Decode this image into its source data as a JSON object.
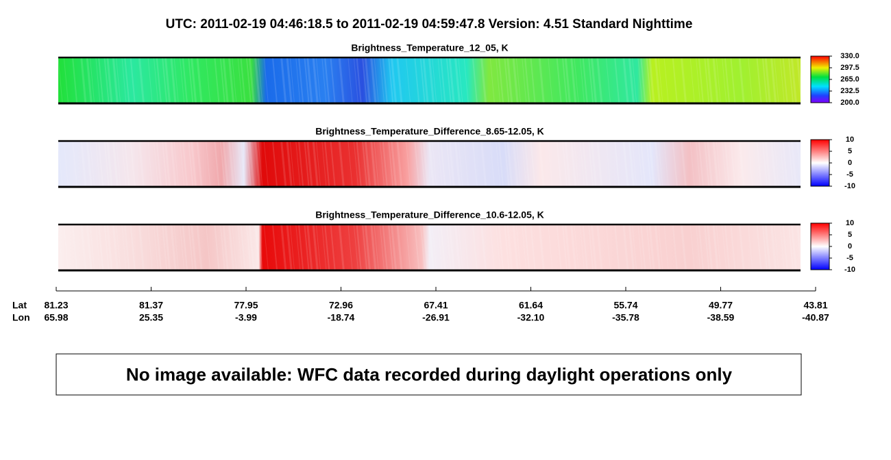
{
  "title": "UTC:  2011-02-19   04:46:18.5  to  2011-02-19   04:59:47.8    Version: 4.51  Standard Nighttime",
  "panels": [
    {
      "title": "Brightness_Temperature_12_05, K",
      "colorbar_ticks": [
        {
          "value": 330,
          "label": "330.0"
        },
        {
          "value": 297.5,
          "label": "297.5"
        },
        {
          "value": 265,
          "label": "265.0"
        },
        {
          "value": 232.5,
          "label": "232.5"
        },
        {
          "value": 200,
          "label": "200.0"
        }
      ]
    },
    {
      "title": "Brightness_Temperature_Difference_8.65-12.05, K",
      "colorbar_ticks": [
        10,
        5,
        0,
        -5,
        -10
      ]
    },
    {
      "title": "Brightness_Temperature_Difference_10.6-12.05, K",
      "colorbar_ticks": [
        10,
        5,
        0,
        -5,
        -10
      ]
    }
  ],
  "axis": {
    "lat_label": "Lat",
    "lon_label": "Lon",
    "lat": [
      "81.23",
      "81.37",
      "77.95",
      "72.96",
      "67.41",
      "61.64",
      "55.74",
      "49.77",
      "43.81"
    ],
    "lon": [
      "65.98",
      "25.35",
      "-3.99",
      "-18.74",
      "-26.91",
      "-32.10",
      "-35.78",
      "-38.59",
      "-40.87"
    ]
  },
  "note": "No image available: WFC data recorded during daylight operations only"
}
